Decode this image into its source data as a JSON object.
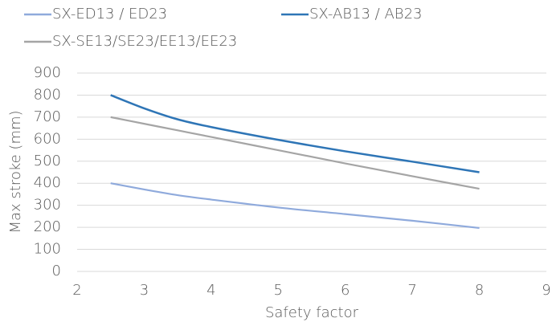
{
  "chart_data": {
    "type": "line",
    "x": [
      2.5,
      3,
      3.5,
      4,
      5,
      6,
      7,
      8
    ],
    "series": [
      {
        "name": "SX-ED13 / ED23",
        "color": "#8faadc",
        "values": [
          400,
          372,
          346,
          326,
          290,
          260,
          230,
          197
        ]
      },
      {
        "name": "SX-AB13 / AB23",
        "color": "#2e75b6",
        "values": [
          800,
          740,
          690,
          655,
          597,
          545,
          498,
          450
        ]
      },
      {
        "name": "SX-SE13/SE23/EE13/EE23",
        "color": "#a5a5a5",
        "values": [
          700,
          670,
          640,
          610,
          550,
          490,
          432,
          375
        ]
      }
    ],
    "xlabel": "Safety factor",
    "ylabel": "Max stroke (mm)",
    "xlim": [
      2,
      9
    ],
    "xticks": [
      2,
      3,
      4,
      5,
      6,
      7,
      8,
      9
    ],
    "ylim": [
      0,
      900
    ],
    "yticks": [
      0,
      100,
      200,
      300,
      400,
      500,
      600,
      700,
      800,
      900
    ],
    "grid": true,
    "legend": "top"
  }
}
